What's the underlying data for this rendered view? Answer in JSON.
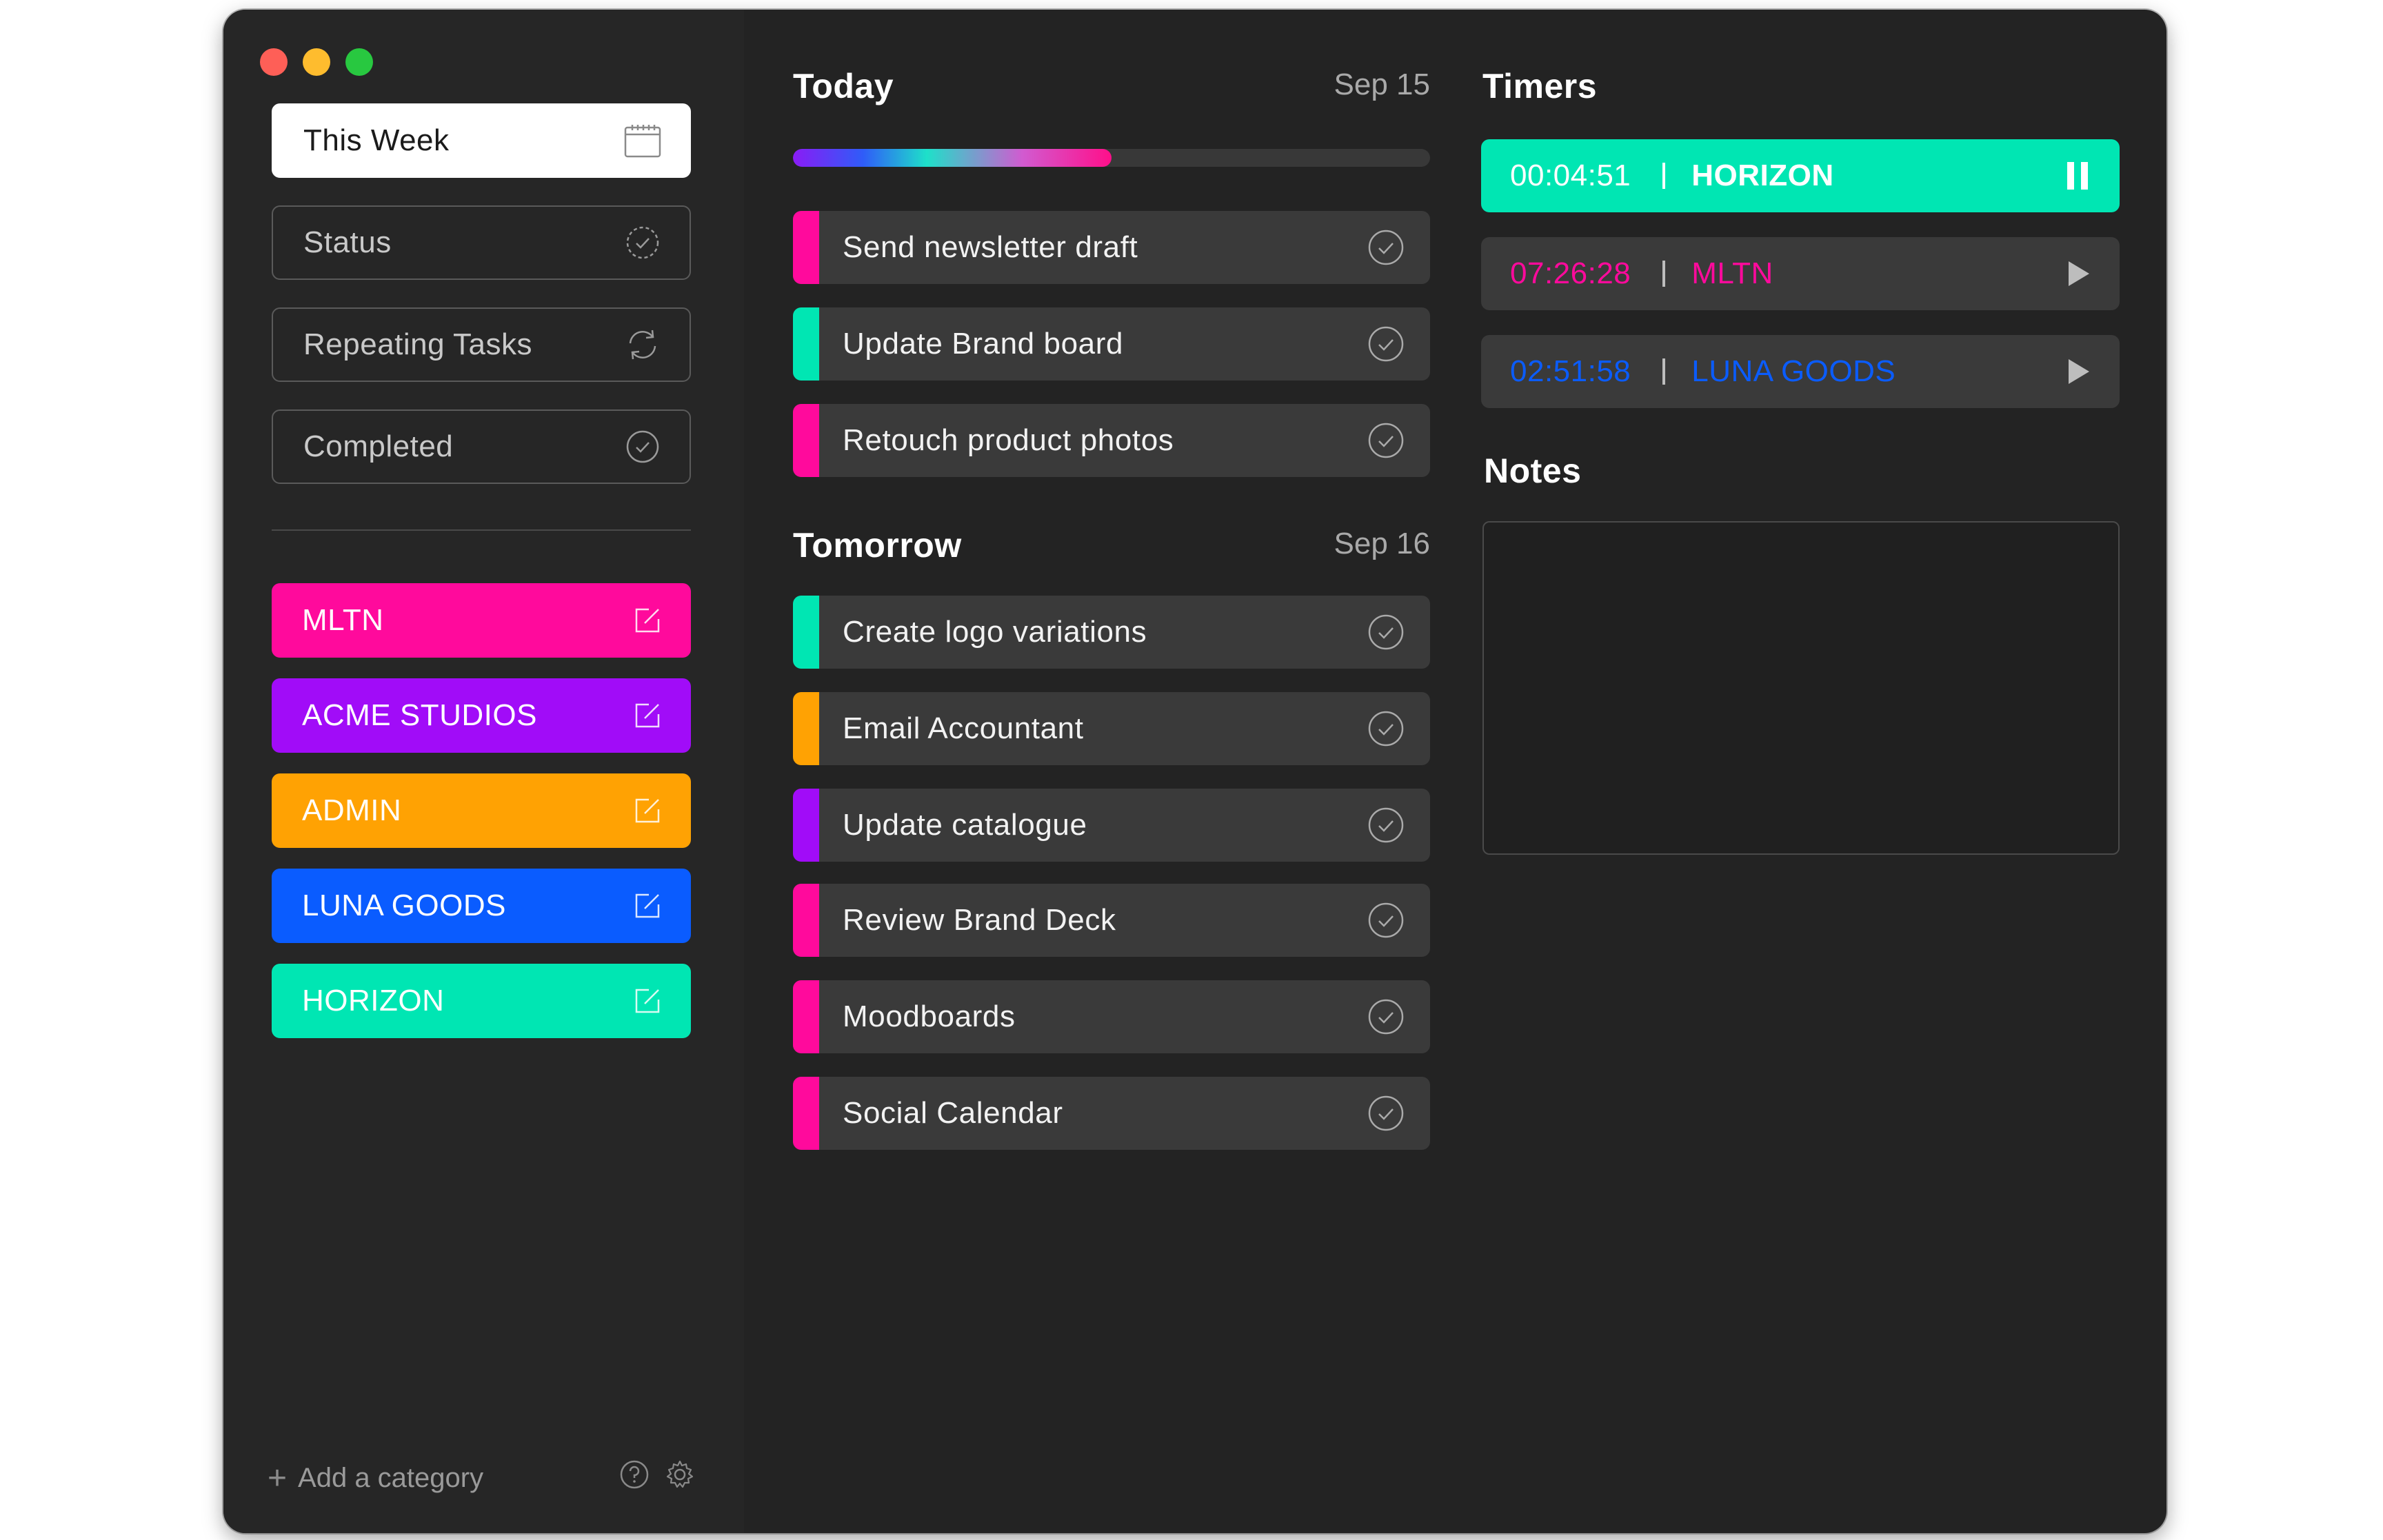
{
  "sidebar": {
    "filters": [
      {
        "label": "This Week",
        "icon": "calendar-icon",
        "active": true
      },
      {
        "label": "Status",
        "icon": "status-circle-icon",
        "active": false
      },
      {
        "label": "Repeating Tasks",
        "icon": "repeat-icon",
        "active": false
      },
      {
        "label": "Completed",
        "icon": "check-circle-icon",
        "active": false
      }
    ],
    "categories": [
      {
        "label": "MLTN",
        "color": "#ff0a9c"
      },
      {
        "label": "ACME STUDIOS",
        "color": "#a10cf8"
      },
      {
        "label": "ADMIN",
        "color": "#ffa203"
      },
      {
        "label": "LUNA GOODS",
        "color": "#0a5cff"
      },
      {
        "label": "HORIZON",
        "color": "#00e6b3"
      }
    ],
    "add_category_label": "Add a category"
  },
  "today": {
    "title": "Today",
    "date": "Sep 15",
    "progress": 0.5,
    "tasks": [
      {
        "label": "Send newsletter draft",
        "color": "#ff0a9c"
      },
      {
        "label": "Update Brand board",
        "color": "#00e6b3"
      },
      {
        "label": "Retouch product photos",
        "color": "#ff0a9c"
      }
    ]
  },
  "tomorrow": {
    "title": "Tomorrow",
    "date": "Sep 16",
    "tasks": [
      {
        "label": "Create logo variations",
        "color": "#00e6b3"
      },
      {
        "label": "Email Accountant",
        "color": "#ffa203"
      },
      {
        "label": "Update catalogue",
        "color": "#a10cf8"
      },
      {
        "label": "Review Brand Deck",
        "color": "#ff0a9c"
      },
      {
        "label": "Moodboards",
        "color": "#ff0a9c"
      },
      {
        "label": "Social Calendar",
        "color": "#ff0a9c"
      }
    ]
  },
  "timers": {
    "title": "Timers",
    "items": [
      {
        "time": "00:04:51",
        "name": "HORIZON",
        "running": true,
        "color": "#00e6b3"
      },
      {
        "time": "07:26:28",
        "name": "MLTN",
        "running": false,
        "color": "#ff0a9c"
      },
      {
        "time": "02:51:58",
        "name": "LUNA GOODS",
        "running": false,
        "color": "#0a5cff"
      }
    ]
  },
  "notes": {
    "title": "Notes",
    "content": ""
  }
}
